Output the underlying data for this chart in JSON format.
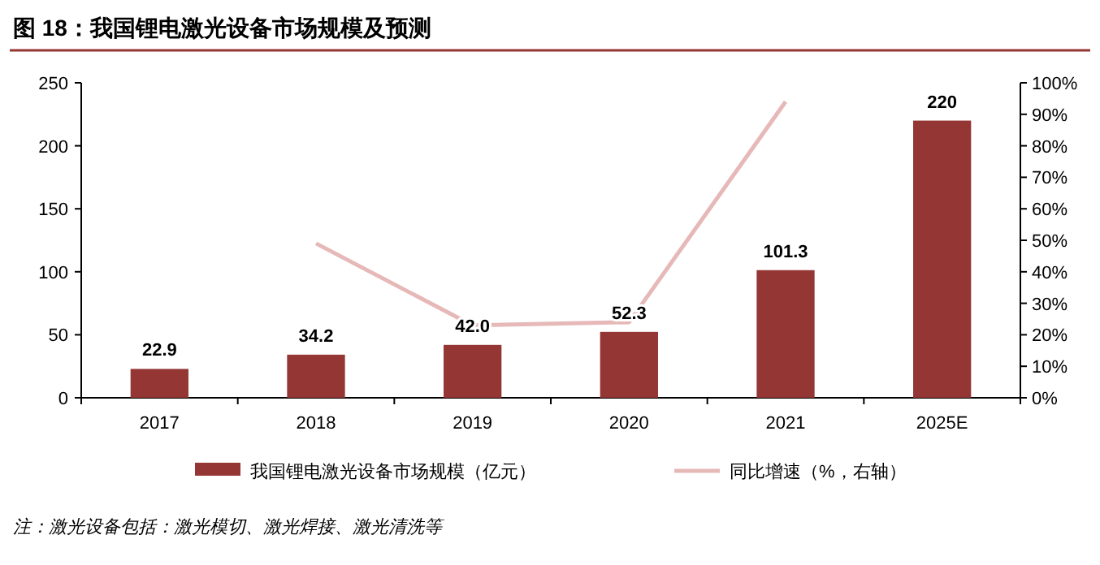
{
  "chart_data": {
    "type": "bar",
    "title": "图 18：我国锂电激光设备市场规模及预测",
    "categories": [
      "2017",
      "2018",
      "2019",
      "2020",
      "2021",
      "2025E"
    ],
    "series": [
      {
        "name": "我国锂电激光设备市场规模（亿元）",
        "color": "#943634",
        "values": [
          22.9,
          34.2,
          42.0,
          52.3,
          101.3,
          220
        ],
        "value_labels": [
          "22.9",
          "34.2",
          "42.0",
          "52.3",
          "101.3",
          "220"
        ]
      },
      {
        "name": "同比增速（%，右轴）",
        "type": "line",
        "axis": "y2",
        "color": "#e6b9b8",
        "values": [
          null,
          49,
          23,
          24,
          94,
          null
        ]
      }
    ],
    "ylim": [
      0,
      250
    ],
    "yticks": [
      0,
      50,
      100,
      150,
      200,
      250
    ],
    "y2lim": [
      0,
      100
    ],
    "y2ticks": [
      {
        "value": 0,
        "label": "0%"
      },
      {
        "value": 10,
        "label": "10%"
      },
      {
        "value": 20,
        "label": "20%"
      },
      {
        "value": 30,
        "label": "30%"
      },
      {
        "value": 40,
        "label": "40%"
      },
      {
        "value": 50,
        "label": "50%"
      },
      {
        "value": 60,
        "label": "60%"
      },
      {
        "value": 70,
        "label": "70%"
      },
      {
        "value": 80,
        "label": "80%"
      },
      {
        "value": 90,
        "label": "90%"
      },
      {
        "value": 100,
        "label": "100%"
      }
    ],
    "grid": false,
    "legend": "bottom",
    "annotations": [
      "注：激光设备包括：激光模切、激光焊接、激光清洗等"
    ]
  }
}
